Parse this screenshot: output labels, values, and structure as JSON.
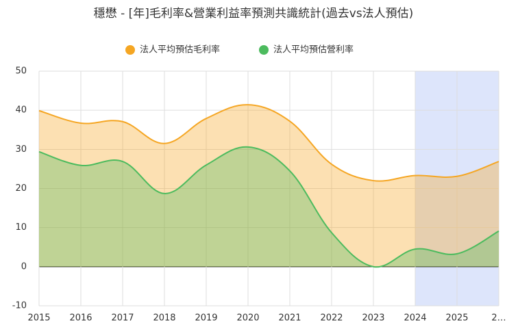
{
  "chart_data": {
    "type": "area",
    "title": "穩懋 - [年]毛利率&營業利益率預測共識統計(過去vs法人預估)",
    "categories": [
      "2015",
      "2016",
      "2017",
      "2018",
      "2019",
      "2020",
      "2021",
      "2022",
      "2023",
      "2024",
      "2025",
      "2…"
    ],
    "series": [
      {
        "name": "法人平均預估毛利率",
        "color": "#f5a623",
        "values": [
          39.9,
          36.7,
          37.1,
          31.5,
          37.9,
          41.4,
          37.2,
          26.2,
          22.0,
          23.3,
          23.1,
          26.9
        ]
      },
      {
        "name": "法人平均預估營利率",
        "color": "#4cbb5e",
        "values": [
          29.4,
          25.9,
          26.9,
          18.7,
          26.0,
          30.6,
          24.5,
          8.7,
          0.0,
          4.5,
          3.3,
          9.1
        ]
      }
    ],
    "ylim": [
      -10,
      50
    ],
    "yticks": [
      -10,
      0,
      10,
      20,
      30,
      40,
      50
    ],
    "grid": true,
    "legend": "top"
  }
}
